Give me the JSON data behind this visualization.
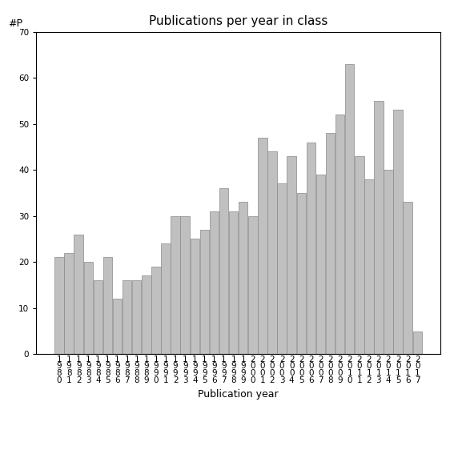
{
  "title": "Publications per year in class",
  "xlabel": "Publication year",
  "ylabel_label": "#P",
  "years": [
    1980,
    1981,
    1982,
    1983,
    1984,
    1985,
    1986,
    1987,
    1988,
    1989,
    1990,
    1991,
    1992,
    1993,
    1994,
    1995,
    1996,
    1997,
    1998,
    1999,
    2000,
    2001,
    2002,
    2003,
    2004,
    2005,
    2006,
    2007,
    2008,
    2009,
    2010,
    2011,
    2012,
    2013,
    2014,
    2015,
    2016,
    2017
  ],
  "values": [
    21,
    22,
    26,
    20,
    16,
    21,
    12,
    16,
    16,
    17,
    19,
    24,
    30,
    30,
    25,
    27,
    31,
    36,
    31,
    33,
    30,
    47,
    44,
    37,
    43,
    35,
    46,
    39,
    48,
    52,
    63,
    43,
    38,
    55,
    40,
    53,
    33,
    5
  ],
  "bar_color": "#c0c0c0",
  "bar_edgecolor": "#888888",
  "ylim": [
    0,
    70
  ],
  "yticks": [
    0,
    10,
    20,
    30,
    40,
    50,
    60,
    70
  ],
  "background_color": "#ffffff",
  "title_fontsize": 11,
  "label_fontsize": 9,
  "tick_fontsize": 7.5
}
